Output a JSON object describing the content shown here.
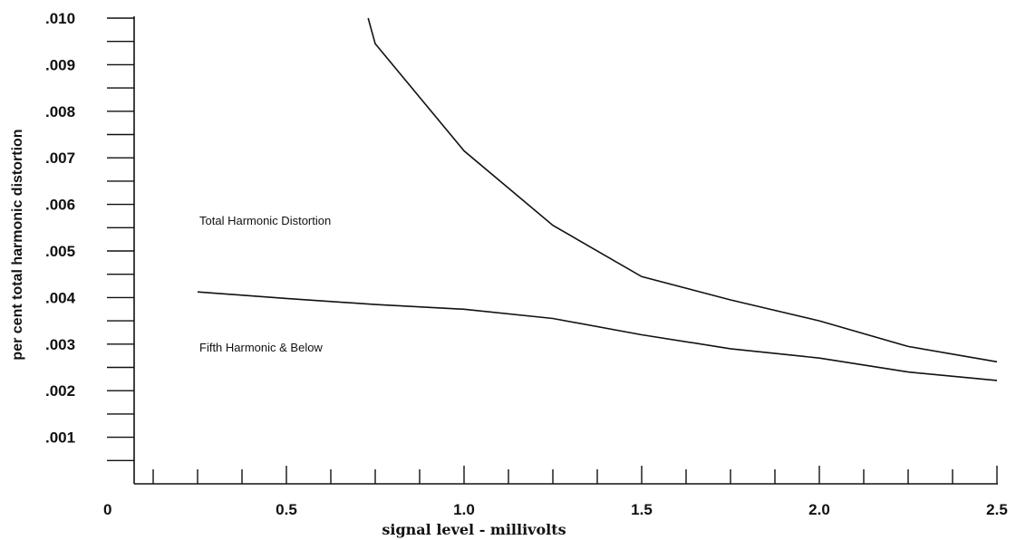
{
  "chart_data": {
    "type": "line",
    "xlabel": "signal level - millivolts",
    "ylabel": "per cent total harmonic distortion",
    "xlim": [
      0,
      2.5
    ],
    "ylim": [
      0,
      0.01
    ],
    "x_tick_labels": [
      "0",
      "0.5",
      "1.0",
      "1.5",
      "2.0",
      "2.5"
    ],
    "x_tick_values": [
      0,
      0.5,
      1.0,
      1.5,
      2.0,
      2.5
    ],
    "x_minor_step": 0.125,
    "y_tick_labels": [
      ".010",
      ".009",
      ".008",
      ".007",
      ".006",
      ".005",
      ".004",
      ".003",
      ".002",
      ".001"
    ],
    "y_tick_values": [
      0.01,
      0.009,
      0.008,
      0.007,
      0.006,
      0.005,
      0.004,
      0.003,
      0.002,
      0.001
    ],
    "y_minor_step": 0.0005,
    "grid": false,
    "series": [
      {
        "name": "Total Harmonic Distortion",
        "x": [
          0.73,
          0.75,
          1.0,
          1.25,
          1.5,
          1.75,
          2.0,
          2.25,
          2.5
        ],
        "values": [
          0.01,
          0.00945,
          0.00715,
          0.00555,
          0.00445,
          0.00395,
          0.0035,
          0.00295,
          0.00262
        ]
      },
      {
        "name": "Fifth Harmonic & Below",
        "x": [
          0.25,
          0.5,
          0.75,
          1.0,
          1.25,
          1.5,
          1.75,
          2.0,
          2.25,
          2.5
        ],
        "values": [
          0.00412,
          0.00398,
          0.00385,
          0.00375,
          0.00355,
          0.0032,
          0.0029,
          0.0027,
          0.0024,
          0.00222
        ]
      }
    ],
    "annotations": [
      "Total Harmonic Distortion",
      "Fifth Harmonic & Below"
    ]
  }
}
